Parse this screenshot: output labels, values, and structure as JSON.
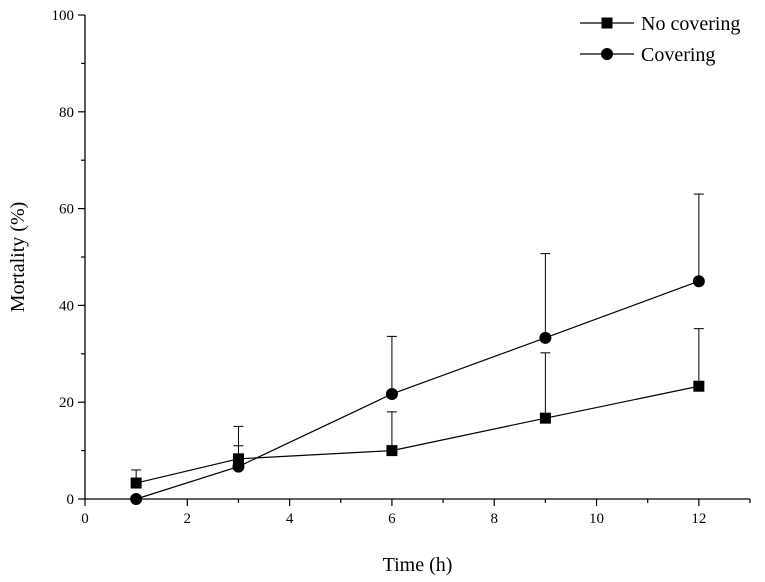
{
  "chart_data": {
    "type": "line",
    "title": "",
    "xlabel": "Time (h)",
    "ylabel": "Mortality (%)",
    "xlim": [
      0,
      13
    ],
    "ylim": [
      0,
      100
    ],
    "xticks": [
      0,
      2,
      4,
      6,
      8,
      10,
      12
    ],
    "yticks": [
      0,
      20,
      40,
      60,
      80,
      100
    ],
    "grid": false,
    "legend_position": "top-right",
    "series": [
      {
        "name": "No covering",
        "marker": "square",
        "color": "#000000",
        "x": [
          1,
          3,
          6,
          9,
          12
        ],
        "y": [
          3.3,
          8.3,
          10,
          16.7,
          23.3
        ],
        "error_upper": [
          2.7,
          2.7,
          8,
          13.5,
          11.9
        ]
      },
      {
        "name": "Covering",
        "marker": "circle",
        "color": "#000000",
        "x": [
          1,
          3,
          6,
          9,
          12
        ],
        "y": [
          0,
          6.7,
          21.7,
          33.3,
          45
        ],
        "error_upper": [
          0,
          8.3,
          11.9,
          17.4,
          18
        ]
      }
    ]
  }
}
